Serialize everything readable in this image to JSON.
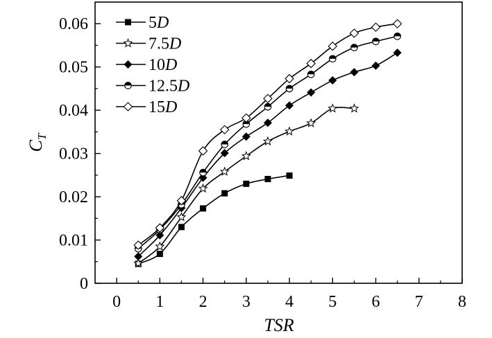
{
  "chart_data": {
    "type": "line",
    "xlabel": "TSR",
    "ylabel": "C",
    "ylabel_sub": "T",
    "xlim": [
      -0.5,
      8
    ],
    "ylim": [
      0,
      0.065
    ],
    "xticks": [
      0,
      1,
      2,
      3,
      4,
      5,
      6,
      7,
      8
    ],
    "yticks": [
      0,
      0.01,
      0.02,
      0.03,
      0.04,
      0.05,
      0.06
    ],
    "xtick_labels": [
      "0",
      "1",
      "2",
      "3",
      "4",
      "5",
      "6",
      "7",
      "8"
    ],
    "ytick_labels": [
      "0",
      "0.01",
      "0.02",
      "0.03",
      "0.04",
      "0.05",
      "0.06"
    ],
    "grid": false,
    "legend_position": "top-left",
    "series": [
      {
        "name": "5D",
        "name_num": "5",
        "name_unit": "D",
        "marker": "filled-square",
        "x": [
          0.5,
          1,
          1.5,
          2,
          2.5,
          3,
          3.5,
          4
        ],
        "y": [
          0.0045,
          0.0068,
          0.013,
          0.0173,
          0.0208,
          0.023,
          0.0241,
          0.0249
        ]
      },
      {
        "name": "7.5D",
        "name_num": "7.5",
        "name_unit": "D",
        "marker": "star",
        "x": [
          0.5,
          1,
          1.5,
          2,
          2.5,
          3,
          3.5,
          4,
          4.5,
          5,
          5.5
        ],
        "y": [
          0.0046,
          0.0085,
          0.0153,
          0.0219,
          0.0258,
          0.0294,
          0.0328,
          0.0351,
          0.037,
          0.0404,
          0.0404
        ]
      },
      {
        "name": "10D",
        "name_num": "10",
        "name_unit": "D",
        "marker": "filled-diamond",
        "x": [
          0.5,
          1,
          1.5,
          2,
          2.5,
          3,
          3.5,
          4,
          4.5,
          5,
          5.5,
          6,
          6.5
        ],
        "y": [
          0.0062,
          0.0111,
          0.0174,
          0.0244,
          0.0301,
          0.0339,
          0.0371,
          0.0411,
          0.0441,
          0.0469,
          0.0488,
          0.0503,
          0.0533
        ]
      },
      {
        "name": "12.5D",
        "name_num": "12.5",
        "name_unit": "D",
        "marker": "half-circle",
        "x": [
          0.5,
          1,
          1.5,
          2,
          2.5,
          3,
          3.5,
          4,
          4.5,
          5,
          5.5,
          6,
          6.5
        ],
        "y": [
          0.008,
          0.0124,
          0.0182,
          0.0256,
          0.0321,
          0.0368,
          0.0408,
          0.045,
          0.0483,
          0.0519,
          0.0545,
          0.0559,
          0.0571
        ]
      },
      {
        "name": "15D",
        "name_num": "15",
        "name_unit": "D",
        "marker": "open-diamond",
        "x": [
          0.5,
          1,
          1.5,
          2,
          2.5,
          3,
          3.5,
          4,
          4.5,
          5,
          5.5,
          6,
          6.5
        ],
        "y": [
          0.0088,
          0.0128,
          0.0191,
          0.0306,
          0.0355,
          0.0382,
          0.0427,
          0.0473,
          0.0508,
          0.0548,
          0.0578,
          0.0592,
          0.06
        ]
      }
    ]
  }
}
